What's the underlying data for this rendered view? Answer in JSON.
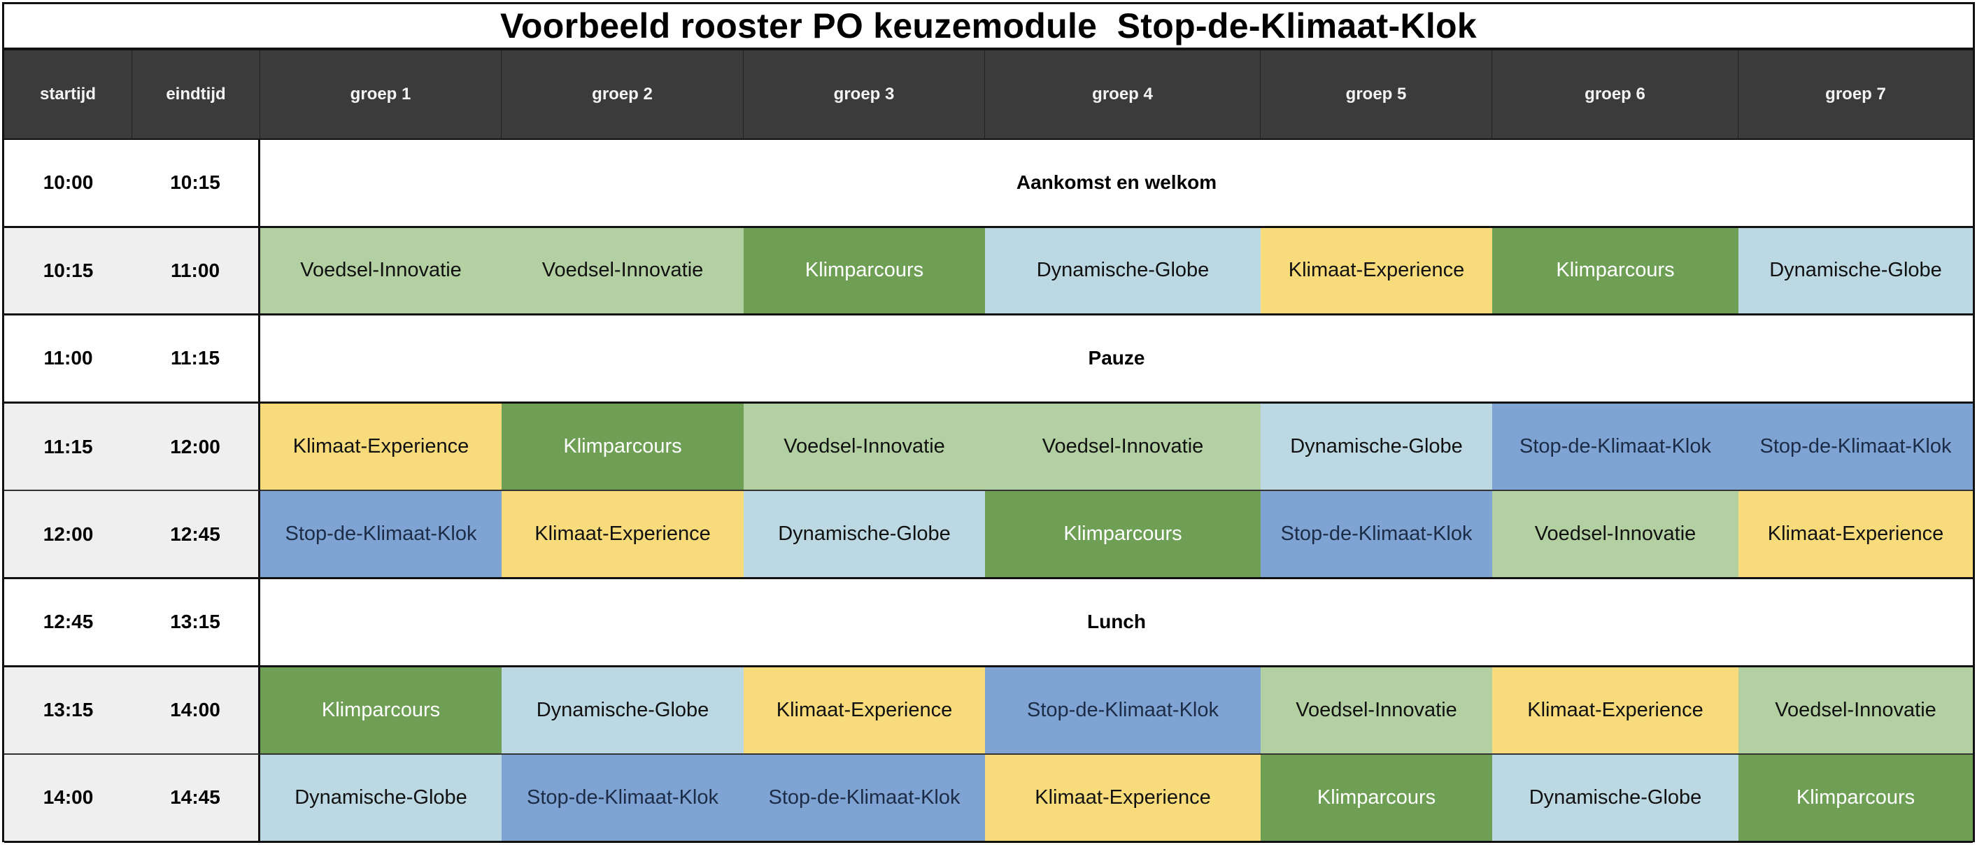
{
  "title": "Voorbeeld rooster PO keuzemodule  Stop-de-Klimaat-Klok",
  "headers": [
    "startijd",
    "eindtijd",
    "groep 1",
    "groep 2",
    "groep 3",
    "groep 4",
    "groep 5",
    "groep 6",
    "groep 7"
  ],
  "activity_colors": {
    "Voedsel-Innovatie": "#b3d0a2",
    "Klimparcours": "#6f9f55",
    "Dynamische-Globe": "#bcd8e3",
    "Klimaat-Experience": "#f8dc7c",
    "Stop-de-Klimaat-Klok": "#7fa4d4"
  },
  "rows": [
    {
      "start": "10:00",
      "end": "10:15",
      "banner": "Aankomst en welkom"
    },
    {
      "start": "10:15",
      "end": "11:00",
      "cells": [
        "Voedsel-Innovatie",
        "Voedsel-Innovatie",
        "Klimparcours",
        "Dynamische-Globe",
        "Klimaat-Experience",
        "Klimparcours",
        "Dynamische-Globe"
      ]
    },
    {
      "start": "11:00",
      "end": "11:15",
      "banner": "Pauze"
    },
    {
      "start": "11:15",
      "end": "12:00",
      "cells": [
        "Klimaat-Experience",
        "Klimparcours",
        "Voedsel-Innovatie",
        "Voedsel-Innovatie",
        "Dynamische-Globe",
        "Stop-de-Klimaat-Klok",
        "Stop-de-Klimaat-Klok"
      ]
    },
    {
      "start": "12:00",
      "end": "12:45",
      "cells": [
        "Stop-de-Klimaat-Klok",
        "Klimaat-Experience",
        "Dynamische-Globe",
        "Klimparcours",
        "Stop-de-Klimaat-Klok",
        "Voedsel-Innovatie",
        "Klimaat-Experience"
      ]
    },
    {
      "start": "12:45",
      "end": "13:15",
      "banner": "Lunch"
    },
    {
      "start": "13:15",
      "end": "14:00",
      "cells": [
        "Klimparcours",
        "Dynamische-Globe",
        "Klimaat-Experience",
        "Stop-de-Klimaat-Klok",
        "Voedsel-Innovatie",
        "Klimaat-Experience",
        "Voedsel-Innovatie"
      ]
    },
    {
      "start": "14:00",
      "end": "14:45",
      "cells": [
        "Dynamische-Globe",
        "Stop-de-Klimaat-Klok",
        "Stop-de-Klimaat-Klok",
        "Klimaat-Experience",
        "Klimparcours",
        "Dynamische-Globe",
        "Klimparcours"
      ]
    }
  ]
}
